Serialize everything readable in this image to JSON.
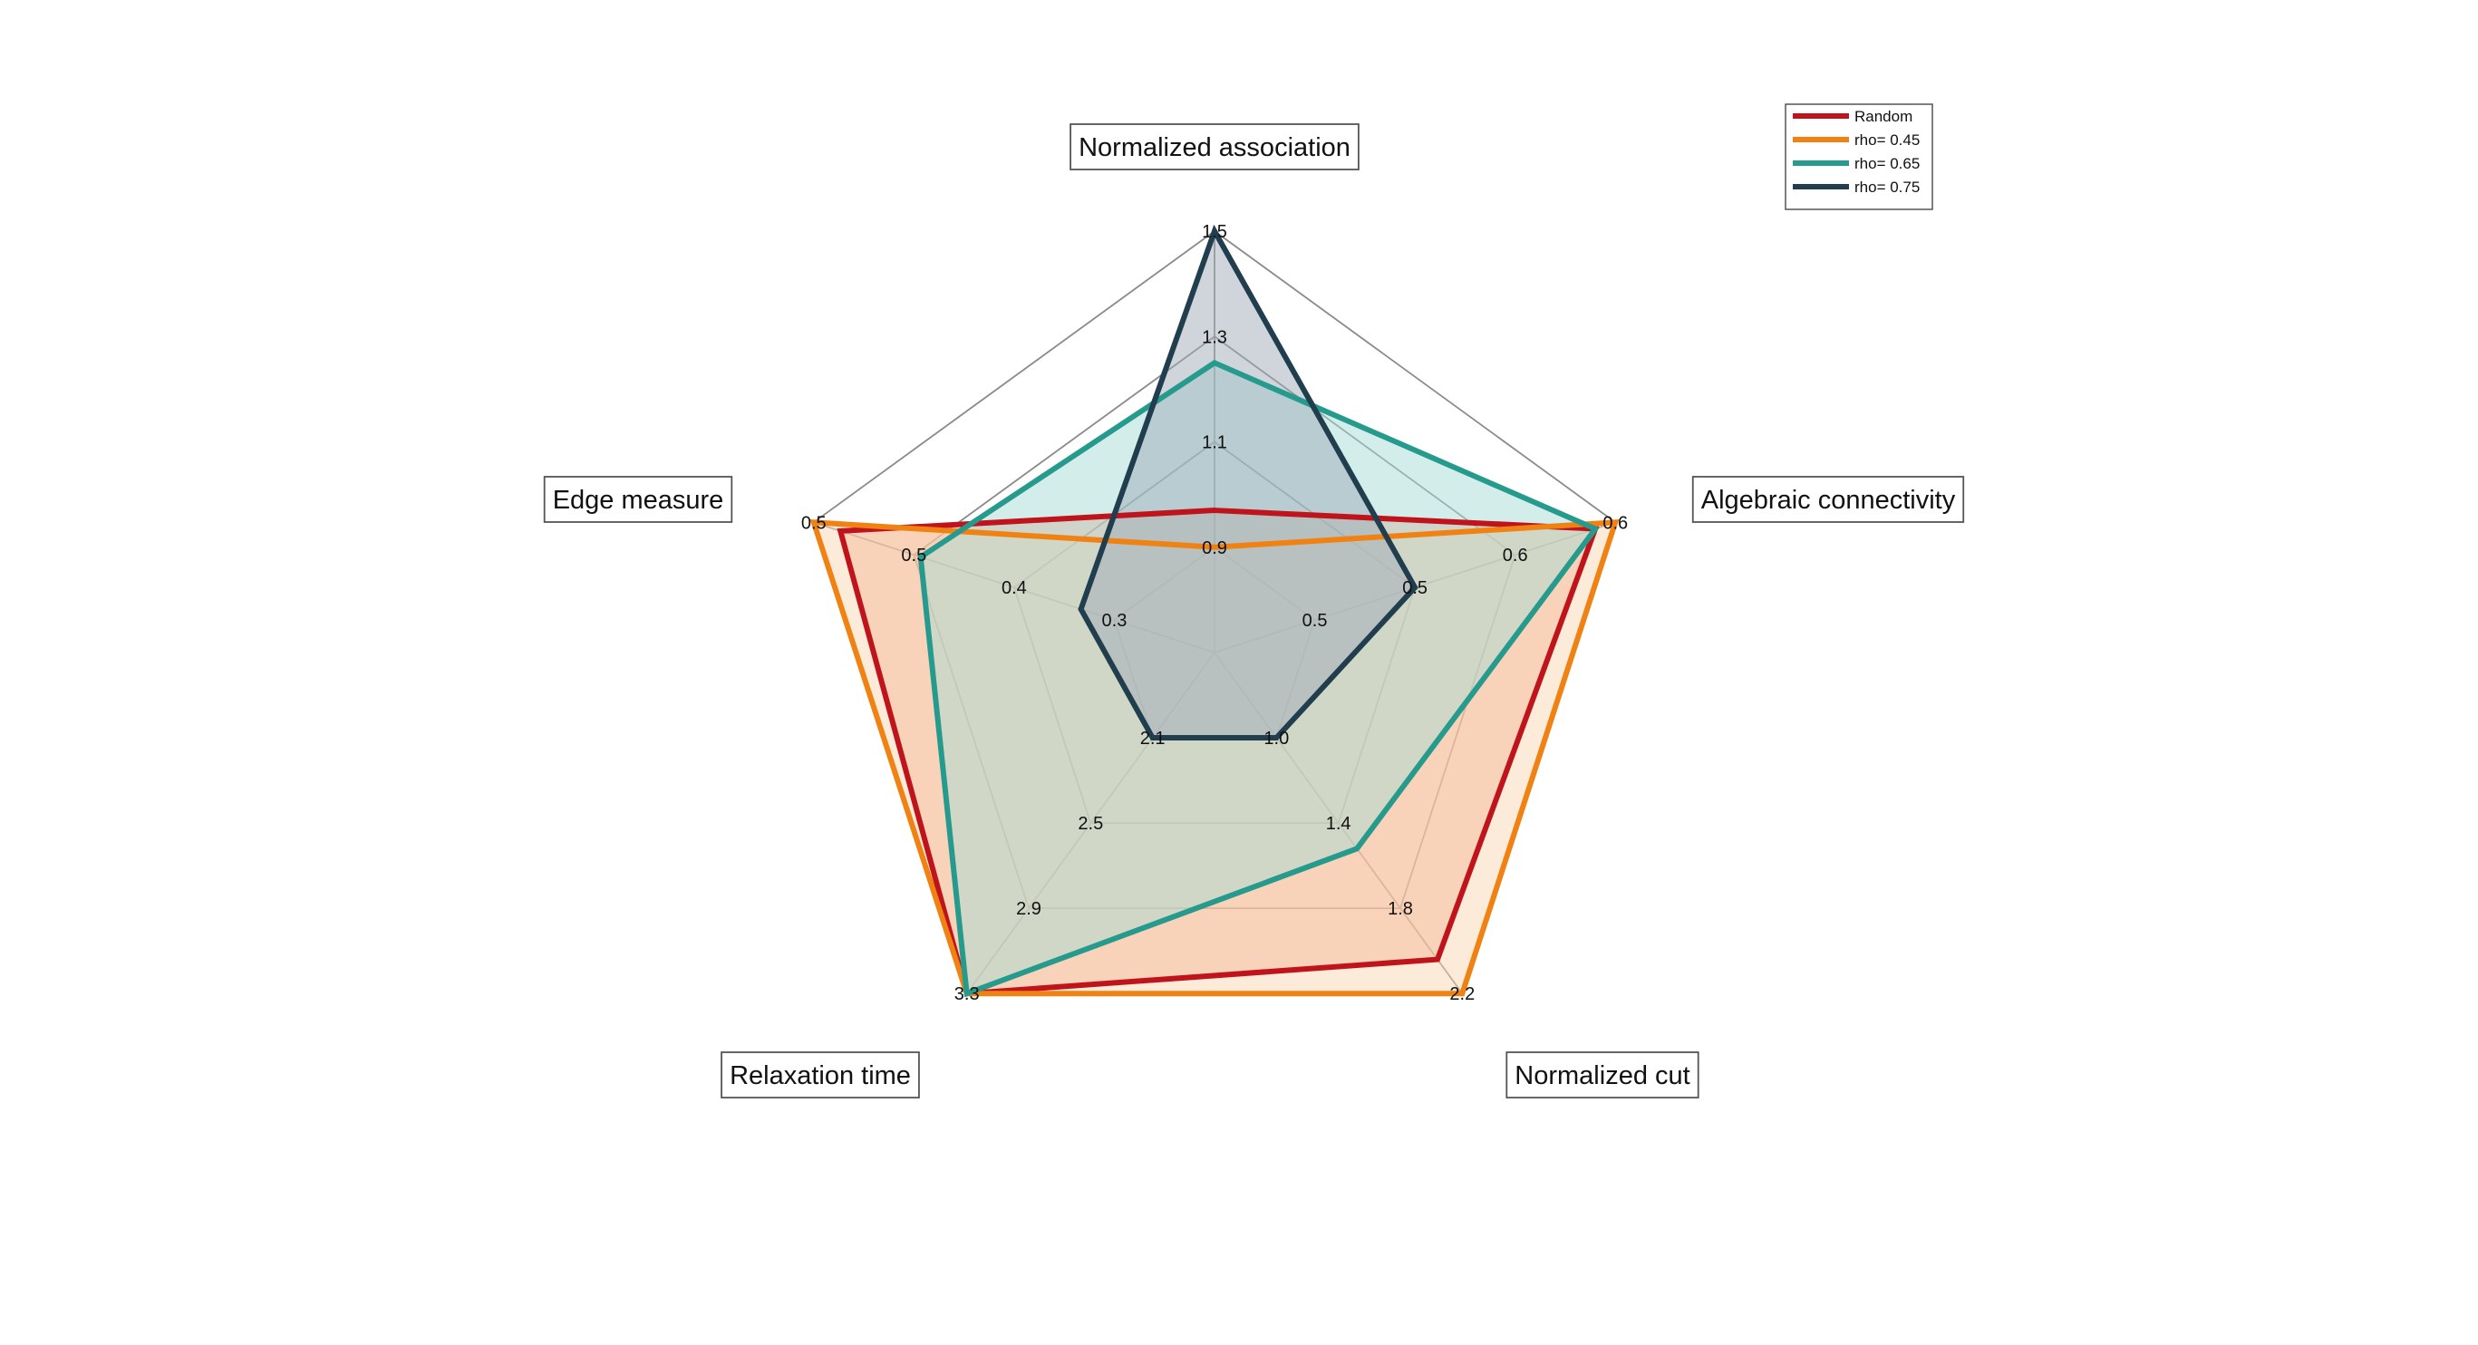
{
  "chart_data": {
    "type": "radar",
    "axes": [
      {
        "label": "Normalized association",
        "ticks": [
          "0.9",
          "1.1",
          "1.3",
          "1.5"
        ],
        "min": 0.7,
        "max": 1.5
      },
      {
        "label": "Algebraic connectivity",
        "ticks": [
          "0.5",
          "0.5",
          "0.6",
          "0.6"
        ],
        "min": 0.4,
        "max": 0.6
      },
      {
        "label": "Normalized cut",
        "ticks": [
          "1.0",
          "1.4",
          "1.8",
          "2.2"
        ],
        "min": 0.6,
        "max": 2.2
      },
      {
        "label": "Relaxation time",
        "ticks": [
          "2.1",
          "2.5",
          "2.9",
          "3.3"
        ],
        "min": 1.7,
        "max": 3.3
      },
      {
        "label": "Edge measure",
        "ticks": [
          "0.3",
          "0.4",
          "0.5",
          "0.5"
        ],
        "min": 0.2,
        "max": 0.5
      }
    ],
    "series": [
      {
        "name": "Random",
        "color": "#c0141c",
        "fill": "#f0a080",
        "values": [
          0.97,
          0.59,
          2.04,
          3.3,
          0.48
        ]
      },
      {
        "name": "rho= 0.45",
        "color": "#f08214",
        "fill": "#fcd7b4",
        "values": [
          0.9,
          0.6,
          2.2,
          3.3,
          0.5
        ]
      },
      {
        "name": "rho= 0.65",
        "color": "#269a8c",
        "fill": "#a8dcd6",
        "values": [
          1.25,
          0.59,
          1.52,
          3.3,
          0.42
        ]
      },
      {
        "name": "rho= 0.75",
        "color": "#213e4e",
        "fill": "#a0acb8",
        "values": [
          1.5,
          0.5,
          1.0,
          2.1,
          0.3
        ]
      }
    ],
    "legend_position": "top-right",
    "grid": true
  }
}
